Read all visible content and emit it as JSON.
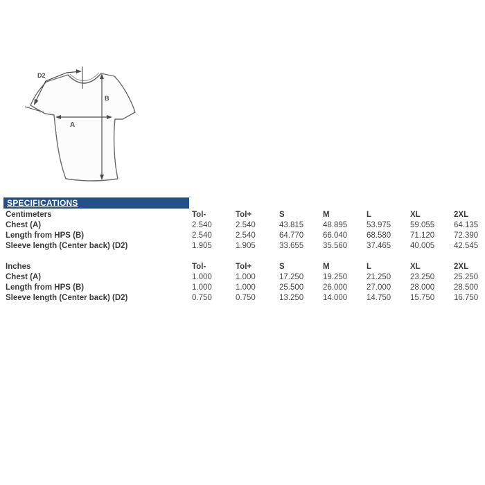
{
  "header": {
    "title": "SPECIFICATIONS",
    "bar_color": "#254f87",
    "text_color": "#ffffff"
  },
  "diagram": {
    "description": "t-shirt measurement diagram",
    "labels": {
      "sleeve_center_back": "D2",
      "length_from_hps": "B",
      "chest": "A"
    }
  },
  "tables": [
    {
      "unit_label": "Centimeters",
      "columns": [
        "Tol-",
        "Tol+",
        "S",
        "M",
        "L",
        "XL",
        "2XL"
      ],
      "rows": [
        {
          "label": "Chest (A)",
          "values": [
            "2.540",
            "2.540",
            "43.815",
            "48.895",
            "53.975",
            "59.055",
            "64.135"
          ]
        },
        {
          "label": "Length from HPS (B)",
          "values": [
            "2.540",
            "2.540",
            "64.770",
            "66.040",
            "68.580",
            "71.120",
            "72.390"
          ]
        },
        {
          "label": "Sleeve length (Center back) (D2)",
          "values": [
            "1.905",
            "1.905",
            "33.655",
            "35.560",
            "37.465",
            "40.005",
            "42.545"
          ]
        }
      ]
    },
    {
      "unit_label": "Inches",
      "columns": [
        "Tol-",
        "Tol+",
        "S",
        "M",
        "L",
        "XL",
        "2XL"
      ],
      "rows": [
        {
          "label": "Chest (A)",
          "values": [
            "1.000",
            "1.000",
            "17.250",
            "19.250",
            "21.250",
            "23.250",
            "25.250"
          ]
        },
        {
          "label": "Length from HPS (B)",
          "values": [
            "1.000",
            "1.000",
            "25.500",
            "26.000",
            "27.000",
            "28.000",
            "28.500"
          ]
        },
        {
          "label": "Sleeve length (Center back) (D2)",
          "values": [
            "0.750",
            "0.750",
            "13.250",
            "14.000",
            "14.750",
            "15.750",
            "16.750"
          ]
        }
      ]
    }
  ]
}
